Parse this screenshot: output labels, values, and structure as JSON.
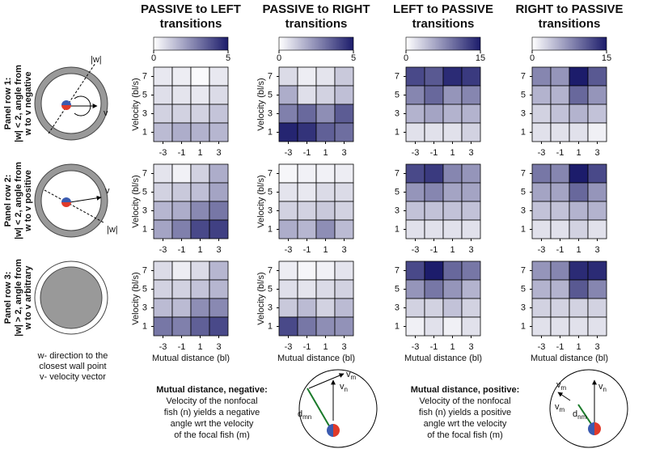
{
  "chart_data": [
    {
      "type": "heatmap",
      "title": [
        "PASSIVE to LEFT",
        "transitions"
      ],
      "x": [
        -3,
        -1,
        1,
        3
      ],
      "y": [
        7,
        5,
        3,
        1
      ],
      "zlim": [
        0,
        5
      ],
      "colorbar_ticks": [
        0,
        5
      ],
      "colormap": [
        "#ffffff",
        "#1c1c6b"
      ],
      "ylabel": "Velocity (bl/s)",
      "z": [
        [
          0.5,
          0.4,
          0.1,
          0.5
        ],
        [
          0.7,
          0.6,
          0.5,
          0.8
        ],
        [
          1.0,
          1.0,
          1.0,
          1.3
        ],
        [
          1.5,
          1.8,
          1.7,
          1.6
        ]
      ]
    },
    {
      "type": "heatmap",
      "title": [
        "PASSIVE to RIGHT",
        "transitions"
      ],
      "x": [
        -3,
        -1,
        1,
        3
      ],
      "y": [
        7,
        5,
        3,
        1
      ],
      "zlim": [
        0,
        5
      ],
      "colorbar_ticks": [
        0,
        5
      ],
      "colormap": [
        "#ffffff",
        "#1c1c6b"
      ],
      "ylabel": "Velocity (bl/s)",
      "z": [
        [
          0.8,
          0.4,
          0.6,
          1.2
        ],
        [
          1.8,
          0.7,
          1.0,
          1.4
        ],
        [
          2.8,
          3.3,
          2.5,
          3.6
        ],
        [
          4.8,
          4.5,
          3.5,
          3.2
        ]
      ]
    },
    {
      "type": "heatmap",
      "title": [
        "LEFT to PASSIVE",
        "transitions"
      ],
      "x": [
        -3,
        -1,
        1,
        3
      ],
      "y": [
        7,
        5,
        3,
        1
      ],
      "zlim": [
        0,
        15
      ],
      "colorbar_ticks": [
        0,
        15
      ],
      "colormap": [
        "#ffffff",
        "#1c1c6b"
      ],
      "z": [
        [
          12,
          11,
          14,
          13
        ],
        [
          8,
          10,
          7,
          8
        ],
        [
          5,
          6,
          5,
          5
        ],
        [
          2,
          2,
          2,
          3
        ]
      ]
    },
    {
      "type": "heatmap",
      "title": [
        "RIGHT to PASSIVE",
        "transitions"
      ],
      "x": [
        -3,
        -1,
        1,
        3
      ],
      "y": [
        7,
        5,
        3,
        1
      ],
      "zlim": [
        0,
        15
      ],
      "colorbar_ticks": [
        0,
        15
      ],
      "colormap": [
        "#ffffff",
        "#1c1c6b"
      ],
      "z": [
        [
          8,
          7,
          15,
          11
        ],
        [
          5,
          5,
          10,
          7
        ],
        [
          3,
          4,
          5,
          4
        ],
        [
          2,
          2,
          2,
          1
        ]
      ]
    },
    {
      "type": "heatmap",
      "x": [
        -3,
        -1,
        1,
        3
      ],
      "y": [
        7,
        5,
        3,
        1
      ],
      "zlim": [
        0,
        5
      ],
      "colormap": [
        "#ffffff",
        "#1c1c6b"
      ],
      "ylabel": "Velocity (bl/s)",
      "z": [
        [
          0.6,
          0.3,
          1.0,
          1.8
        ],
        [
          1.0,
          1.2,
          1.4,
          2.0
        ],
        [
          1.6,
          1.8,
          2.6,
          3.0
        ],
        [
          2.0,
          2.8,
          4.0,
          4.2
        ]
      ]
    },
    {
      "type": "heatmap",
      "x": [
        -3,
        -1,
        1,
        3
      ],
      "y": [
        7,
        5,
        3,
        1
      ],
      "zlim": [
        0,
        5
      ],
      "colormap": [
        "#ffffff",
        "#1c1c6b"
      ],
      "ylabel": "Velocity (bl/s)",
      "z": [
        [
          0.2,
          0.3,
          0.3,
          0.4
        ],
        [
          0.6,
          0.5,
          0.8,
          0.8
        ],
        [
          1.0,
          1.0,
          1.2,
          1.0
        ],
        [
          1.8,
          1.6,
          2.5,
          1.5
        ]
      ]
    },
    {
      "type": "heatmap",
      "x": [
        -3,
        -1,
        1,
        3
      ],
      "y": [
        7,
        5,
        3,
        1
      ],
      "zlim": [
        0,
        15
      ],
      "colormap": [
        "#ffffff",
        "#1c1c6b"
      ],
      "z": [
        [
          12,
          13,
          8,
          7
        ],
        [
          7,
          8,
          6,
          6
        ],
        [
          4,
          4,
          4,
          4
        ],
        [
          2,
          2,
          2,
          2
        ]
      ]
    },
    {
      "type": "heatmap",
      "x": [
        -3,
        -1,
        1,
        3
      ],
      "y": [
        7,
        5,
        3,
        1
      ],
      "zlim": [
        0,
        15
      ],
      "colormap": [
        "#ffffff",
        "#1c1c6b"
      ],
      "z": [
        [
          9,
          8,
          15,
          12
        ],
        [
          6,
          6,
          10,
          7
        ],
        [
          4,
          4,
          5,
          5
        ],
        [
          2,
          2,
          3,
          2
        ]
      ]
    },
    {
      "type": "heatmap",
      "x": [
        -3,
        -1,
        1,
        3
      ],
      "y": [
        7,
        5,
        3,
        1
      ],
      "zlim": [
        0,
        5
      ],
      "colormap": [
        "#ffffff",
        "#1c1c6b"
      ],
      "ylabel": "Velocity (bl/s)",
      "xlabel": "Mutual distance (bl)",
      "z": [
        [
          0.8,
          0.4,
          0.8,
          1.6
        ],
        [
          1.0,
          1.0,
          1.3,
          1.6
        ],
        [
          1.5,
          1.5,
          2.5,
          2.6
        ],
        [
          3.0,
          2.8,
          3.5,
          4.0
        ]
      ]
    },
    {
      "type": "heatmap",
      "x": [
        -3,
        -1,
        1,
        3
      ],
      "y": [
        7,
        5,
        3,
        1
      ],
      "zlim": [
        0,
        5
      ],
      "colormap": [
        "#ffffff",
        "#1c1c6b"
      ],
      "ylabel": "Velocity (bl/s)",
      "xlabel": "Mutual distance (bl)",
      "z": [
        [
          0.4,
          0.2,
          0.3,
          0.6
        ],
        [
          0.7,
          0.6,
          0.8,
          1.0
        ],
        [
          1.2,
          1.5,
          1.0,
          1.5
        ],
        [
          4.0,
          3.0,
          2.5,
          2.4
        ]
      ]
    },
    {
      "type": "heatmap",
      "x": [
        -3,
        -1,
        1,
        3
      ],
      "y": [
        7,
        5,
        3,
        1
      ],
      "zlim": [
        0,
        15
      ],
      "colormap": [
        "#ffffff",
        "#1c1c6b"
      ],
      "xlabel": "Mutual distance (bl)",
      "z": [
        [
          12,
          15,
          10,
          9
        ],
        [
          7,
          9,
          7,
          5
        ],
        [
          3,
          3,
          4,
          3
        ],
        [
          1,
          2,
          1,
          2
        ]
      ]
    },
    {
      "type": "heatmap",
      "x": [
        -3,
        -1,
        1,
        3
      ],
      "y": [
        7,
        5,
        3,
        1
      ],
      "zlim": [
        0,
        15
      ],
      "colormap": [
        "#ffffff",
        "#1c1c6b"
      ],
      "xlabel": "Mutual distance (bl)",
      "z": [
        [
          7,
          8,
          14,
          14
        ],
        [
          5,
          5,
          11,
          8
        ],
        [
          3,
          3,
          3,
          3
        ],
        [
          2,
          2,
          2,
          2
        ]
      ]
    }
  ],
  "panel_rows": [
    {
      "title": "Panel row 1:",
      "lines": [
        "|w| < 2, angle from",
        "w to v negative"
      ]
    },
    {
      "title": "Panel row 2:",
      "lines": [
        "|w| < 2, angle from",
        "w to v positive"
      ]
    },
    {
      "title": "Panel row 3:",
      "lines": [
        "|w| > 2, angle from",
        "w to v arbitrary"
      ]
    }
  ],
  "row_diagrams": [
    {
      "w": "|w|",
      "v": "v"
    },
    {
      "w": "|w|",
      "v": "v"
    }
  ],
  "legend": [
    "w- direction to the",
    "closest wall point",
    "v- velocity vector"
  ],
  "notes": [
    {
      "title": "Mutual distance, negative:",
      "lines": [
        "Velocity of the nonfocal",
        "fish (n) yields a negative",
        "angle wrt the velocity",
        "of the focal fish (m)"
      ]
    },
    {
      "title": "Mutual distance, positive:",
      "lines": [
        "Velocity of the nonfocal",
        "fish (n) yields a positive",
        "angle wrt the velocity",
        "of the focal fish (m)"
      ]
    }
  ],
  "fish_diagrams": [
    {
      "labels": [
        {
          "base": "v",
          "sub": "m"
        },
        {
          "base": "v",
          "sub": "n"
        },
        {
          "base": "d",
          "sub": "mn"
        }
      ]
    },
    {
      "labels": [
        {
          "base": "v",
          "sub": "m"
        },
        {
          "base": "v",
          "sub": "n"
        },
        {
          "base": "v",
          "sub": "m"
        },
        {
          "base": "d",
          "sub": "nm"
        }
      ]
    }
  ]
}
